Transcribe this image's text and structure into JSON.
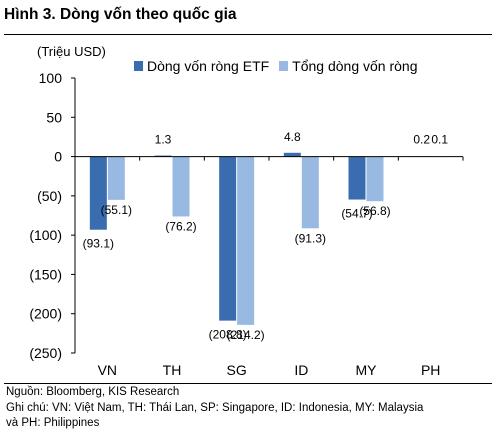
{
  "figure": {
    "title": "Hình 3. Dòng vốn theo quốc gia",
    "source": "Nguồn: Bloomberg, KIS Research",
    "note_line1": "Ghi chú: VN: Việt Nam, TH: Thái Lan, SP: Singapore, ID: Indonesia, MY: Malaysia",
    "note_line2": "và PH: Philippines"
  },
  "chart_data": {
    "type": "bar",
    "unit_label": "(Triệu USD)",
    "categories": [
      "VN",
      "TH",
      "SG",
      "ID",
      "MY",
      "PH"
    ],
    "series": [
      {
        "name": "Dòng vốn ròng ETF",
        "color": "#3A6DB0",
        "values": [
          -93.1,
          1.3,
          -208.8,
          4.8,
          -54.7,
          0.2
        ]
      },
      {
        "name": "Tổng dòng vốn ròng",
        "color": "#97B9E2",
        "values": [
          -55.1,
          -76.2,
          -214.2,
          -91.3,
          -56.8,
          0.1
        ]
      }
    ],
    "data_labels": [
      [
        "(93.1)",
        "1.3",
        "(208.8)",
        "4.8",
        "(54.7)",
        "0.2"
      ],
      [
        "(55.1)",
        "(76.2)",
        "(214.2)",
        "(91.3)",
        "(56.8)",
        "0.1"
      ]
    ],
    "ylim": [
      -250,
      100
    ],
    "yticks": [
      100,
      50,
      0,
      -50,
      -100,
      -150,
      -200,
      -250
    ],
    "ytick_labels": [
      "100",
      "50",
      "0",
      "(50)",
      "(100)",
      "(150)",
      "(200)",
      "(250)"
    ],
    "legend_position": "top",
    "grid": false
  }
}
